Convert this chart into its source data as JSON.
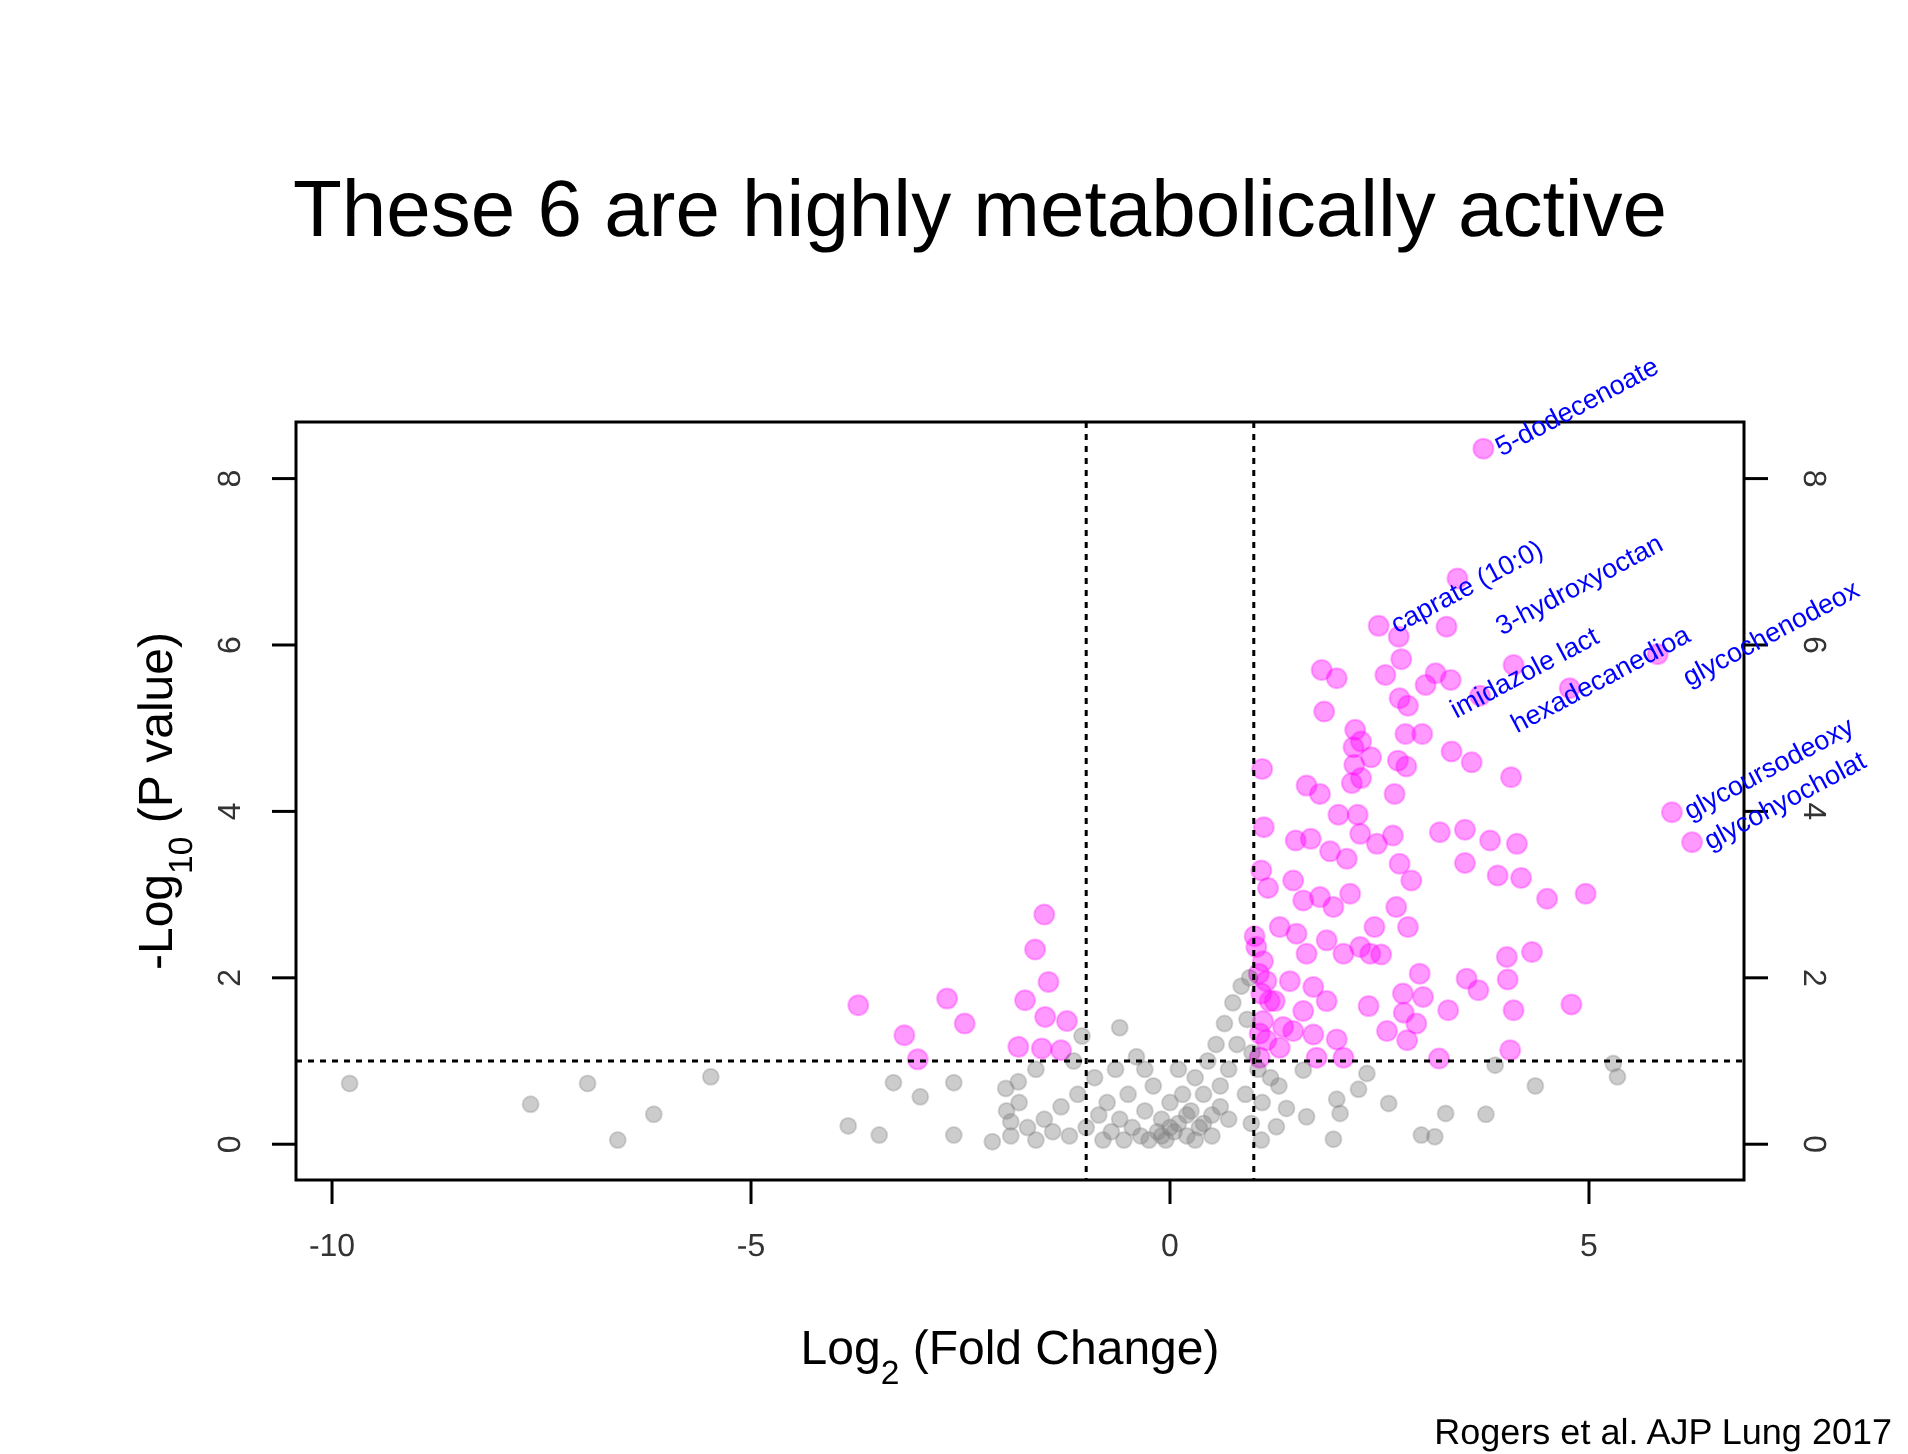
{
  "chart_data": {
    "type": "scatter",
    "title": "These 6 are highly metabolically active",
    "xlabel": "Log$_{2}$ (Fold Change)",
    "ylabel": "-Log$_{10}$ (P value)",
    "xlim": [
      -10.43,
      6.85
    ],
    "ylim": [
      -0.43,
      8.68
    ],
    "xticks": [
      -10,
      -5,
      0,
      5
    ],
    "yticks": [
      0,
      2,
      4,
      6,
      8
    ],
    "y2lim": [
      -0.43,
      8.68
    ],
    "y2ticks": [
      0,
      2,
      4,
      6,
      8
    ],
    "grid": false,
    "marker": "circle",
    "ref_lines": [
      {
        "axis": "x",
        "value": -1,
        "line_style": "dotted",
        "color": "#000000"
      },
      {
        "axis": "x",
        "value": 1,
        "line_style": "dotted",
        "color": "#000000"
      },
      {
        "axis": "y",
        "value": 1,
        "line_style": "dotted",
        "color": "#000000"
      }
    ],
    "annotations": [
      {
        "text": "5-dodecenoate",
        "x": 3.74,
        "y": 8.36
      },
      {
        "text": "caprate (10:0)",
        "x": 2.49,
        "y": 6.23
      },
      {
        "text": "3-hydroxyoctan",
        "x": 3.43,
        "y": 6.8
      },
      {
        "text": "imidazole lact",
        "x": 2.73,
        "y": 6.1
      },
      {
        "text": "hexadecanedioa",
        "x": 3.3,
        "y": 6.22
      },
      {
        "text": "glycochenodeox",
        "x": 5.82,
        "y": 5.89
      },
      {
        "text": "glycoursodeoxy",
        "x": 5.99,
        "y": 3.99
      },
      {
        "text": "glycohyocholat",
        "x": 6.23,
        "y": 3.63
      },
      "Rogers et al. AJP Lung 2017"
    ],
    "series": [
      {
        "color": "#ff00ff",
        "x": [
          3.74,
          3.43,
          2.49,
          2.73,
          3.3,
          2.76,
          4.1,
          1.81,
          1.99,
          2.57,
          3.17,
          3.35,
          3.05,
          3.7,
          4.77,
          2.74,
          2.84,
          1.84,
          2.21,
          2.19,
          2.28,
          2.4,
          2.81,
          3.01,
          3.36,
          3.6,
          4.07,
          2.2,
          2.72,
          2.82,
          1.1,
          2.17,
          2.28,
          2.68,
          1.63,
          1.79,
          2.01,
          2.24,
          2.27,
          1.12,
          1.5,
          1.68,
          1.91,
          2.11,
          2.47,
          2.66,
          3.22,
          3.52,
          3.82,
          4.14,
          3.52,
          3.91,
          4.19,
          2.74,
          2.88,
          4.5,
          4.96,
          1.09,
          1.17,
          1.47,
          1.59,
          1.79,
          1.95,
          2.15,
          1.01,
          1.31,
          1.51,
          1.87,
          2.07,
          2.27,
          2.44,
          2.7,
          2.84,
          2.39,
          2.52,
          4.02,
          4.32,
          3.54,
          4.03,
          3.68,
          2.98,
          2.78,
          3.02,
          2.37,
          3.32,
          4.1,
          4.79,
          2.79,
          2.94,
          2.59,
          2.83,
          4.06,
          3.21,
          1.99,
          1.75,
          2.07,
          1.11,
          1.15,
          1.19,
          1.11,
          1.15,
          1.35,
          1.43,
          1.63,
          1.71,
          1.87,
          1.59,
          1.47,
          1.71,
          1.31,
          1.07,
          1.25,
          1.03,
          1.06,
          1.09,
          1.07,
          5.82,
          5.99,
          6.23,
          -1.5,
          -1.61,
          -1.45,
          -1.73,
          -1.49,
          -1.23,
          -1.81,
          -1.53,
          -1.3,
          -3.72,
          -3.17,
          -3.01,
          -2.66,
          -2.45
        ],
        "values": [
          8.36,
          6.8,
          6.23,
          6.1,
          6.22,
          5.83,
          5.76,
          5.7,
          5.6,
          5.64,
          5.66,
          5.58,
          5.52,
          5.39,
          5.48,
          5.36,
          5.27,
          5.2,
          4.98,
          4.77,
          4.84,
          4.65,
          4.93,
          4.93,
          4.72,
          4.59,
          4.41,
          4.56,
          4.61,
          4.54,
          4.51,
          4.34,
          4.4,
          4.21,
          4.31,
          4.21,
          3.96,
          3.96,
          3.73,
          3.81,
          3.65,
          3.67,
          3.52,
          3.43,
          3.61,
          3.71,
          3.75,
          3.78,
          3.65,
          3.61,
          3.38,
          3.23,
          3.2,
          3.37,
          3.17,
          2.95,
          3.01,
          3.29,
          3.08,
          3.17,
          2.93,
          2.97,
          2.85,
          3.01,
          2.5,
          2.61,
          2.53,
          2.45,
          2.29,
          2.37,
          2.61,
          2.85,
          2.61,
          2.29,
          2.28,
          2.25,
          2.31,
          1.99,
          1.98,
          1.85,
          2.05,
          1.81,
          1.77,
          1.66,
          1.61,
          1.61,
          1.68,
          1.58,
          1.45,
          1.36,
          1.25,
          1.13,
          1.03,
          1.26,
          1.04,
          1.04,
          2.2,
          1.96,
          1.72,
          1.48,
          1.25,
          1.41,
          1.96,
          2.29,
          1.89,
          1.72,
          1.6,
          1.36,
          1.32,
          1.16,
          1.04,
          1.72,
          2.37,
          2.05,
          1.81,
          1.33,
          5.89,
          3.99,
          3.63,
          2.76,
          2.34,
          1.95,
          1.73,
          1.53,
          1.48,
          1.17,
          1.15,
          1.13,
          1.67,
          1.31,
          1.02,
          1.75,
          1.45
        ]
      },
      {
        "color": "#000000",
        "x": [
          -9.79,
          -7.63,
          -6.95,
          -6.59,
          -6.16,
          -5.48,
          -3.84,
          -3.47,
          -3.3,
          -2.98,
          -2.58,
          -2.58,
          -1.96,
          -1.81,
          -2.12,
          -1.9,
          5.29,
          5.34,
          4.36,
          3.88,
          3.29,
          3.0,
          3.16,
          2.61,
          2.35,
          2.25,
          1.99,
          2.03,
          1.95,
          1.63,
          1.39,
          1.27,
          1.59,
          1.09,
          3.77,
          -1.9,
          -1.7,
          -1.6,
          -1.5,
          -1.4,
          -1.3,
          -1.2,
          -1.1,
          -1.05,
          -1.0,
          -0.9,
          -0.85,
          -0.8,
          -0.75,
          -0.7,
          -0.65,
          -0.6,
          -0.55,
          -0.5,
          -0.45,
          -0.4,
          -0.35,
          -0.3,
          -0.25,
          -0.2,
          -0.15,
          -0.1,
          -0.05,
          0.0,
          0.05,
          0.1,
          0.15,
          0.2,
          0.25,
          0.3,
          0.35,
          0.4,
          0.45,
          0.5,
          0.55,
          0.6,
          0.65,
          0.7,
          0.75,
          0.8,
          0.85,
          0.9,
          0.92,
          0.95,
          0.97,
          0.98,
          -0.6,
          -1.15,
          -0.3,
          0.1,
          0.2,
          -0.1,
          0.0,
          0.3,
          0.5,
          0.4,
          0.6,
          0.7,
          1.1,
          1.2,
          1.3,
          1.05,
          -1.8,
          -1.6,
          -1.95
        ],
        "values": [
          0.73,
          0.48,
          0.73,
          0.05,
          0.36,
          0.81,
          0.22,
          0.11,
          0.74,
          0.57,
          0.74,
          0.11,
          0.67,
          0.75,
          0.03,
          0.27,
          0.97,
          0.81,
          0.7,
          0.95,
          0.37,
          0.11,
          0.09,
          0.49,
          0.85,
          0.66,
          0.54,
          0.37,
          0.06,
          0.33,
          0.43,
          0.21,
          0.89,
          0.05,
          0.36,
          0.1,
          0.2,
          0.05,
          0.3,
          0.15,
          0.45,
          0.1,
          0.6,
          1.3,
          0.2,
          0.8,
          0.35,
          0.05,
          0.5,
          0.15,
          0.9,
          0.3,
          0.05,
          0.6,
          0.2,
          1.05,
          0.1,
          0.4,
          0.05,
          0.7,
          0.15,
          0.3,
          0.05,
          0.5,
          0.15,
          0.25,
          0.6,
          0.1,
          0.4,
          0.8,
          0.2,
          0.6,
          1.0,
          0.35,
          1.2,
          0.7,
          1.45,
          0.9,
          1.7,
          1.2,
          1.9,
          0.6,
          1.5,
          2.0,
          0.25,
          1.1,
          1.4,
          1.0,
          0.9,
          0.9,
          0.35,
          0.1,
          0.2,
          0.05,
          0.1,
          0.25,
          0.45,
          0.3,
          0.5,
          0.8,
          0.7,
          0.9,
          0.5,
          0.9,
          0.4
        ]
      }
    ]
  }
}
